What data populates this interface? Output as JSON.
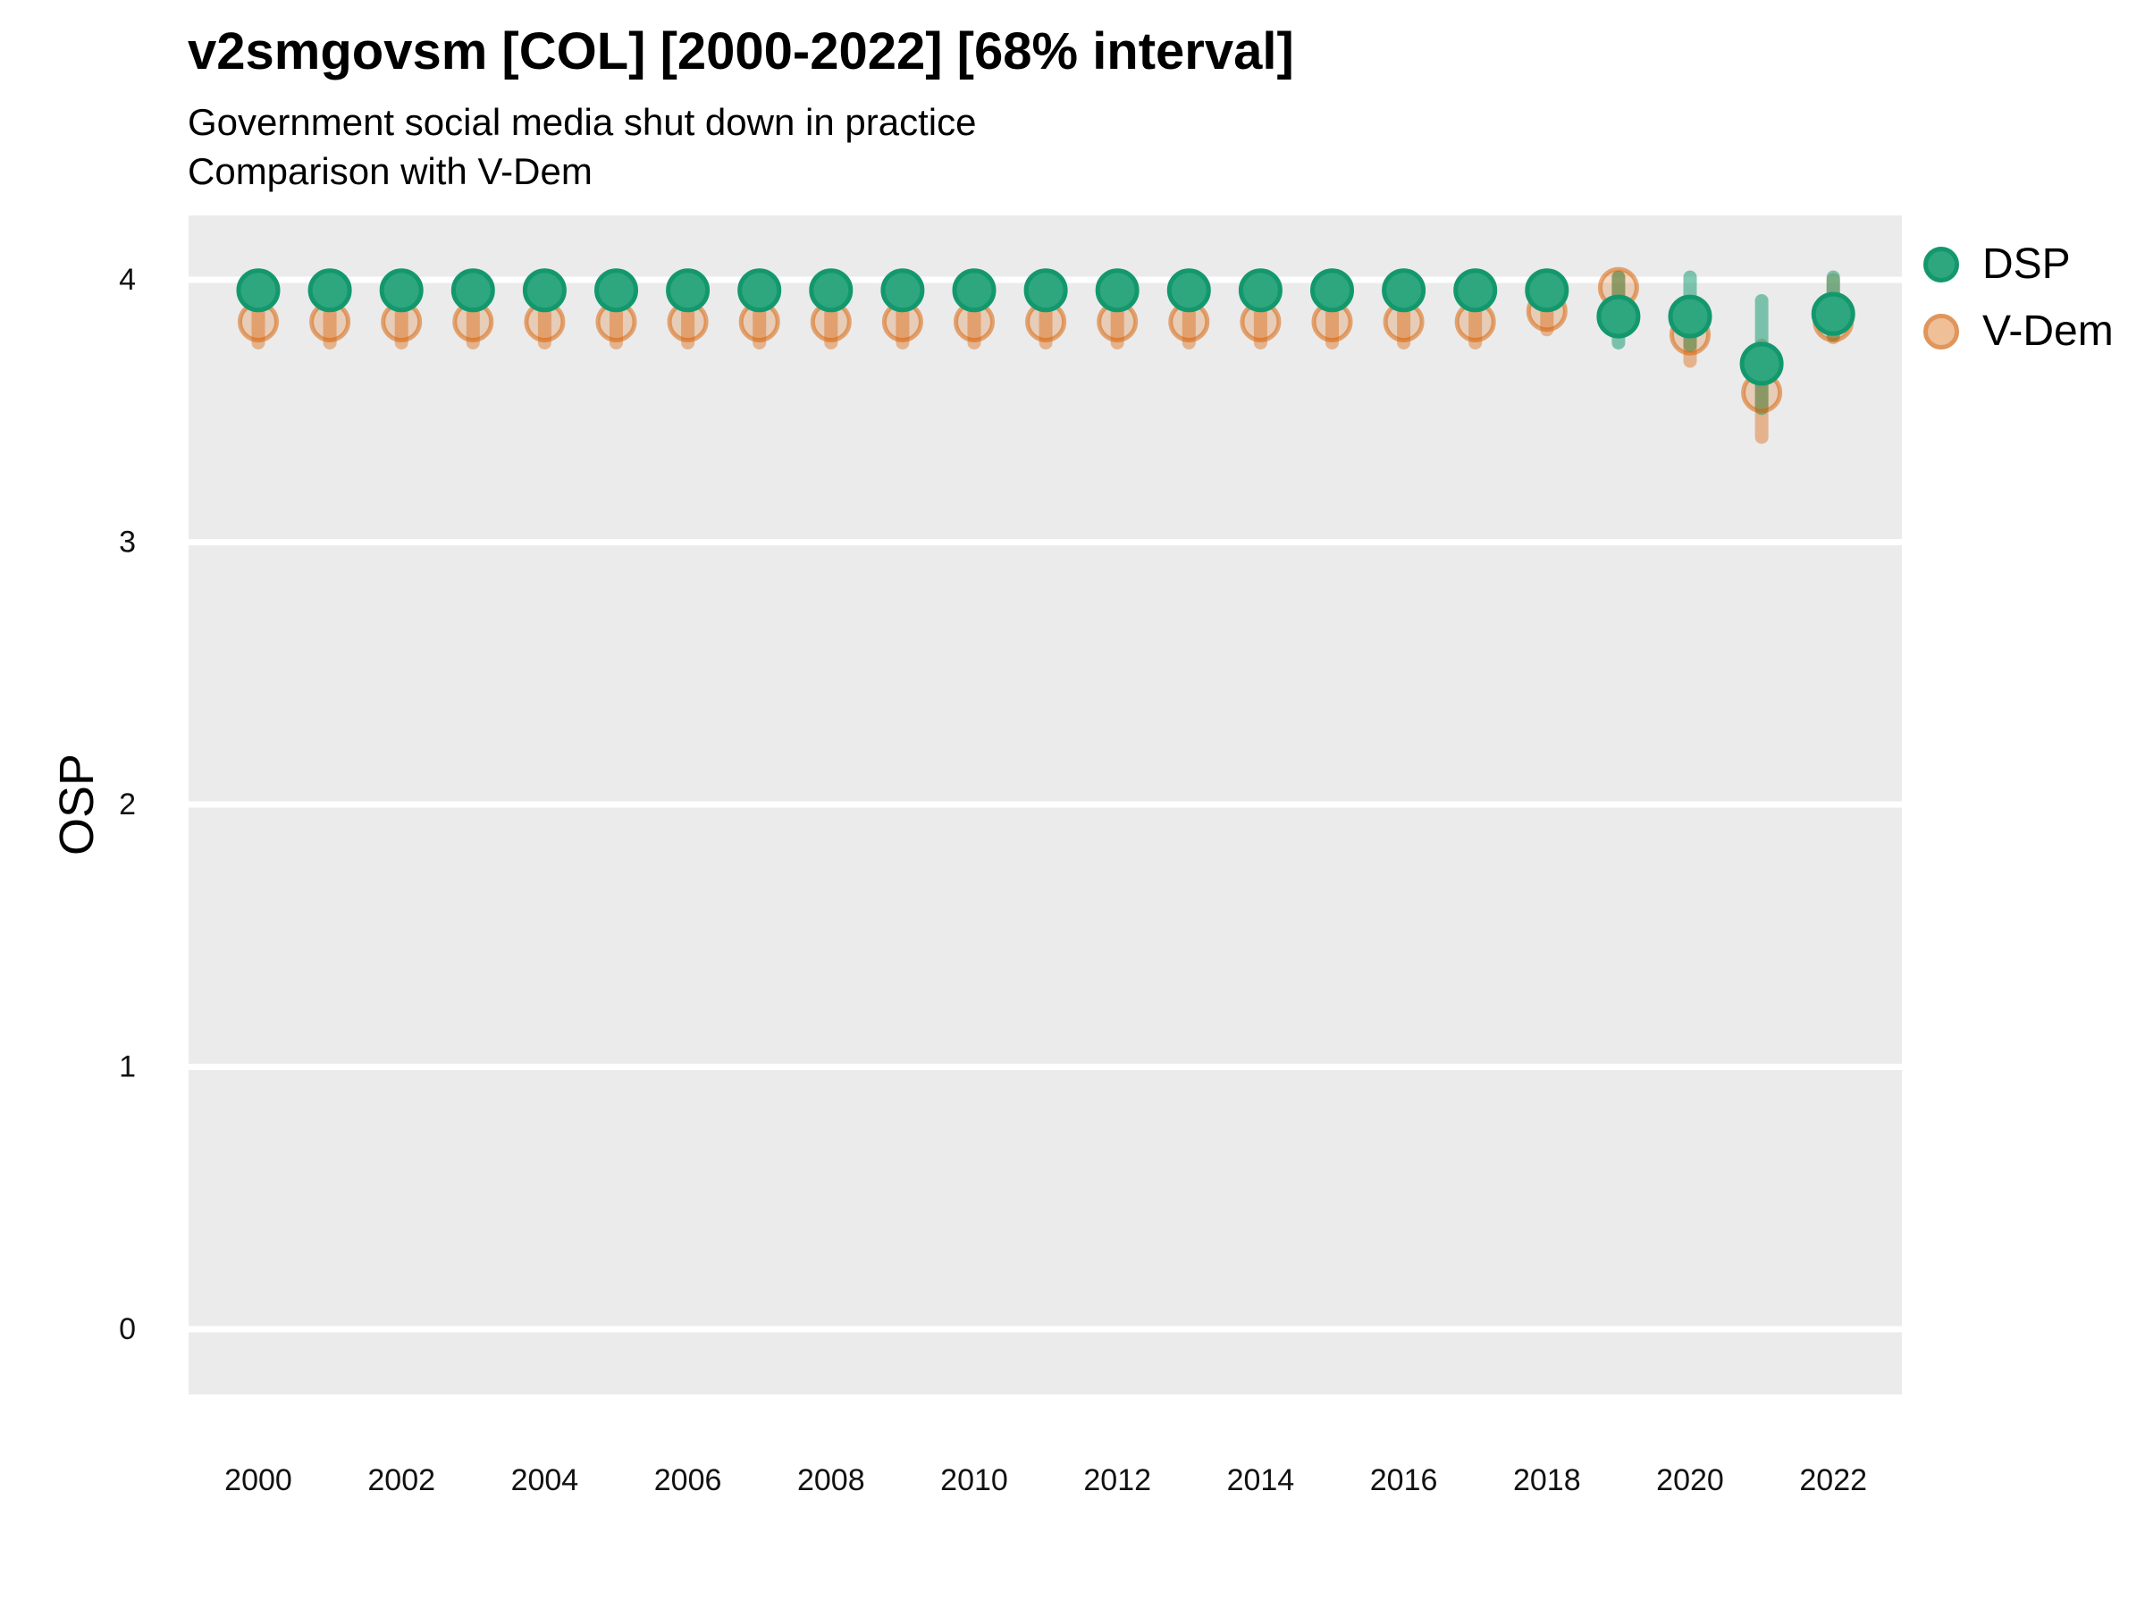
{
  "header": {
    "title": "v2smgovsm [COL] [2000-2022] [68% interval]",
    "subtitle_line1": "Government social media shut down in practice",
    "subtitle_line2": "Comparison with V-Dem"
  },
  "legend": {
    "items": [
      {
        "label": "DSP",
        "color": "#1B9E77"
      },
      {
        "label": "V-Dem",
        "color": "#D95F02"
      }
    ]
  },
  "axes": {
    "y_label": "OSP",
    "y_ticks": [
      0,
      1,
      2,
      3,
      4
    ],
    "x_ticks": [
      2000,
      2002,
      2004,
      2006,
      2008,
      2010,
      2012,
      2014,
      2016,
      2018,
      2020,
      2022
    ]
  },
  "chart_data": {
    "type": "scatter",
    "title": "v2smgovsm [COL] [2000-2022] [68% interval]",
    "subtitle": "Government social media shut down in practice — Comparison with V-Dem",
    "xlabel": "",
    "ylabel": "OSP",
    "interval": "68%",
    "xlim": [
      1999,
      2023
    ],
    "ylim": [
      -0.25,
      4.25
    ],
    "grid": "major-horizontal-white-on-gray",
    "legend_position": "right-top",
    "x": [
      2000,
      2001,
      2002,
      2003,
      2004,
      2005,
      2006,
      2007,
      2008,
      2009,
      2010,
      2011,
      2012,
      2013,
      2014,
      2015,
      2016,
      2017,
      2018,
      2019,
      2020,
      2021,
      2022
    ],
    "series": [
      {
        "name": "DSP",
        "color": "#1B9E77",
        "y": [
          3.96,
          3.96,
          3.96,
          3.96,
          3.96,
          3.96,
          3.96,
          3.96,
          3.96,
          3.96,
          3.96,
          3.96,
          3.96,
          3.96,
          3.96,
          3.96,
          3.96,
          3.96,
          3.96,
          3.86,
          3.86,
          3.68,
          3.87
        ],
        "lo": [
          3.91,
          3.91,
          3.91,
          3.91,
          3.91,
          3.91,
          3.91,
          3.91,
          3.91,
          3.91,
          3.91,
          3.91,
          3.91,
          3.91,
          3.91,
          3.91,
          3.91,
          3.91,
          3.91,
          3.76,
          3.75,
          3.51,
          3.79
        ],
        "hi": [
          4.01,
          4.01,
          4.01,
          4.01,
          4.01,
          4.01,
          4.01,
          4.01,
          4.01,
          4.01,
          4.01,
          4.01,
          4.01,
          4.01,
          4.01,
          4.01,
          4.01,
          4.01,
          4.01,
          4.01,
          4.01,
          3.92,
          4.01
        ]
      },
      {
        "name": "V-Dem",
        "color": "#D95F02",
        "y": [
          3.84,
          3.84,
          3.84,
          3.84,
          3.84,
          3.84,
          3.84,
          3.84,
          3.84,
          3.84,
          3.84,
          3.84,
          3.84,
          3.84,
          3.84,
          3.84,
          3.84,
          3.84,
          3.88,
          3.97,
          3.79,
          3.57,
          3.84
        ],
        "lo": [
          3.76,
          3.76,
          3.76,
          3.76,
          3.76,
          3.76,
          3.76,
          3.76,
          3.76,
          3.76,
          3.76,
          3.76,
          3.76,
          3.76,
          3.76,
          3.76,
          3.76,
          3.76,
          3.81,
          3.92,
          3.69,
          3.4,
          3.78
        ],
        "hi": [
          3.93,
          3.93,
          3.93,
          3.93,
          3.93,
          3.93,
          3.93,
          3.93,
          3.93,
          3.93,
          3.93,
          3.93,
          3.93,
          3.93,
          3.93,
          3.93,
          3.93,
          3.93,
          3.95,
          4.01,
          3.9,
          3.75,
          4.0
        ]
      }
    ]
  },
  "style": {
    "panel_bg": "#EBEBEB",
    "gridline": "#FFFFFF",
    "dsp_point_fill": "#2EA67E",
    "dsp_point_stroke": "#13986E",
    "dsp_bar": "rgba(27,158,119,0.55)",
    "vdem_point_fill": "rgba(217,95,2,0.22)",
    "vdem_point_stroke": "rgba(217,95,2,0.52)",
    "vdem_bar": "rgba(217,95,2,0.40)"
  }
}
